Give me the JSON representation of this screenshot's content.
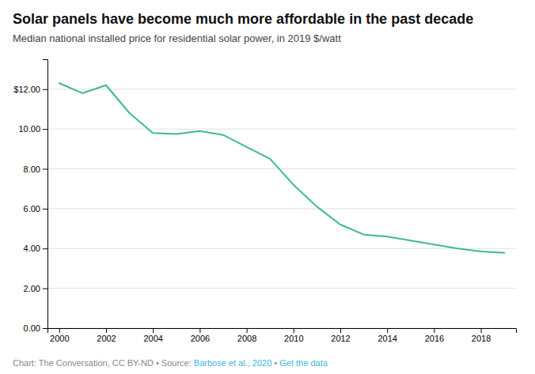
{
  "chart_data": {
    "type": "line",
    "title": "Solar panels have become much more affordable in the past decade",
    "subtitle": "Median national installed price for residential solar power, in 2019 $/watt",
    "x": [
      2000,
      2001,
      2002,
      2003,
      2004,
      2005,
      2006,
      2007,
      2008,
      2009,
      2010,
      2011,
      2012,
      2013,
      2014,
      2015,
      2016,
      2017,
      2018,
      2019
    ],
    "values": [
      12.3,
      11.8,
      12.2,
      10.8,
      9.8,
      9.75,
      9.9,
      9.7,
      9.1,
      8.5,
      7.2,
      6.1,
      5.2,
      4.7,
      4.6,
      4.4,
      4.2,
      4.0,
      3.85,
      3.78
    ],
    "color": "#3dba8d",
    "xlim": [
      1999.5,
      2019.5
    ],
    "xticks": [
      2000,
      2002,
      2004,
      2006,
      2008,
      2010,
      2012,
      2014,
      2016,
      2018
    ],
    "ylim": [
      0,
      13.5
    ],
    "yticks": [
      {
        "value": 0.0,
        "label": "0.00"
      },
      {
        "value": 2.0,
        "label": "2.00"
      },
      {
        "value": 4.0,
        "label": "4.00"
      },
      {
        "value": 6.0,
        "label": "6.00"
      },
      {
        "value": 8.0,
        "label": "8.00"
      },
      {
        "value": 10.0,
        "label": "10.00"
      },
      {
        "value": 12.0,
        "label": "$12.00"
      }
    ],
    "grid": true,
    "annotations": [
      {
        "text": "Chart: The Conversation, CC BY-ND • Source: "
      },
      {
        "text": "Barbose et al., 2020",
        "color": "#3ab5e6"
      },
      {
        "text": " • "
      },
      {
        "text": "Get the data",
        "color": "#3ab5e6"
      }
    ]
  }
}
